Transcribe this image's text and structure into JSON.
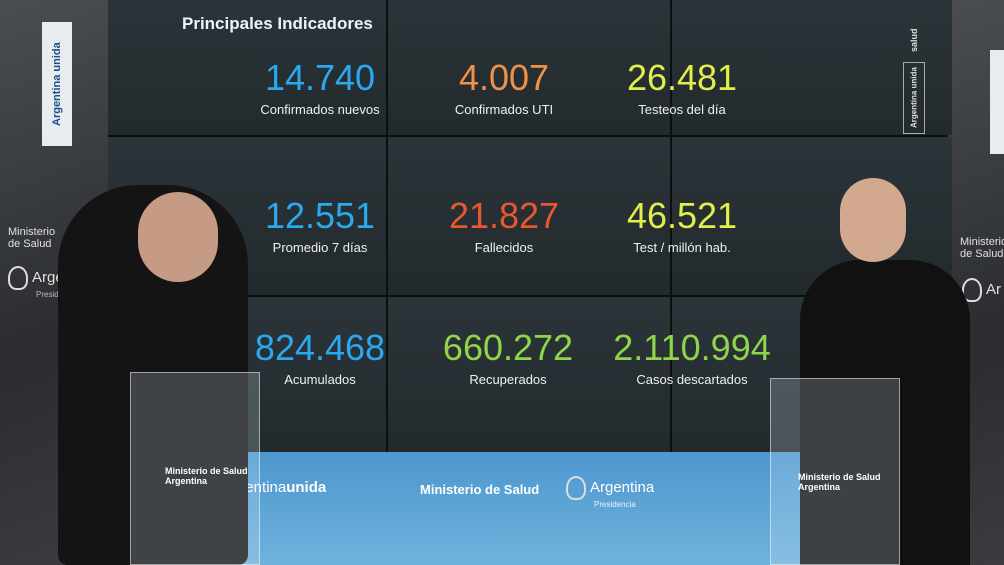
{
  "screen": {
    "title": "Principales Indicadores",
    "stats": [
      {
        "value": "14.740",
        "label": "Confirmados nuevos",
        "color": "#2aa8f0"
      },
      {
        "value": "4.007",
        "label": "Confirmados UTI",
        "color": "#f0914a"
      },
      {
        "value": "26.481",
        "label": "Testeos del día",
        "color": "#e2ee4a"
      },
      {
        "value": "12.551",
        "label": "Promedio 7 días",
        "color": "#2aa8f0"
      },
      {
        "value": "21.827",
        "label": "Fallecidos",
        "color": "#e8582e"
      },
      {
        "value": "46.521",
        "label": "Test / millón hab.",
        "color": "#e2ee4a"
      },
      {
        "value": "824.468",
        "label": "Acumulados",
        "color": "#2aa8f0"
      },
      {
        "value": "660.272",
        "label": "Recuperados",
        "color": "#8fd44a"
      },
      {
        "value": "2.110.994",
        "label": "Casos descartados",
        "color": "#8fd44a"
      }
    ],
    "side_logo": "Argentina unida",
    "side_salud": "salud"
  },
  "left_wall": {
    "banner": "Argentina unida",
    "ministerio": "Ministerio de Salud",
    "argentina": "Argentina",
    "presidencia": "Presidencia"
  },
  "right_wall": {
    "ministerio": "Ministerio de Salud",
    "argentina": "Ar"
  },
  "bottom_banner": {
    "argentina_unida_a": "rgentina",
    "argentina_unida_b": "unida",
    "ministerio": "Ministerio de Salud",
    "argentina": "Argentina",
    "presidencia": "Presidencia"
  },
  "podiums": {
    "ministerio": "Ministerio de Salud",
    "argentina": "Argentina"
  }
}
